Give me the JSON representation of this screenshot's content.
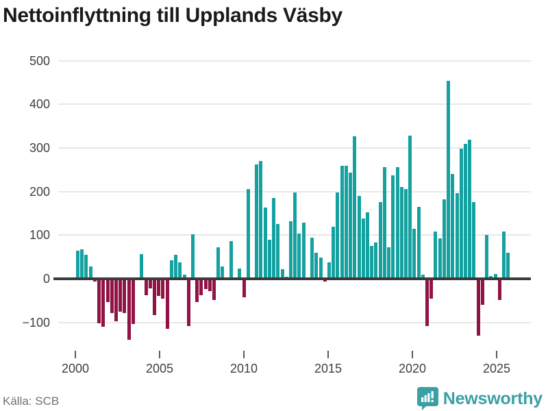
{
  "title": "Nettoinflyttning till Upplands Väsby",
  "footer": {
    "source_label": "Källa: SCB"
  },
  "brand": {
    "name": "Newsworthy",
    "color": "#3b9fa4",
    "icon": "bar-chart-bubble-icon"
  },
  "chart_data": {
    "type": "bar",
    "title": "Nettoinflyttning till Upplands Väsby",
    "xlabel": "",
    "ylabel": "",
    "frequency": "quarterly",
    "start_year": 2000,
    "start_quarter": 2,
    "x_ticks": [
      2000,
      2005,
      2010,
      2015,
      2020,
      2025
    ],
    "y_ticks": [
      500,
      400,
      300,
      200,
      100,
      0,
      -100
    ],
    "ylim": [
      -160,
      520
    ],
    "grid": true,
    "positive_color": "#14a1a0",
    "negative_color": "#911244",
    "values": [
      65,
      68,
      55,
      29,
      -6,
      -102,
      -110,
      -54,
      -78,
      -98,
      -76,
      -78,
      -140,
      -103,
      0,
      56,
      -38,
      -22,
      -83,
      -40,
      -45,
      -114,
      42,
      55,
      38,
      10,
      -108,
      102,
      -54,
      -38,
      -24,
      -29,
      -48,
      73,
      29,
      0,
      87,
      0,
      24,
      -43,
      206,
      0,
      262,
      271,
      163,
      89,
      186,
      125,
      22,
      4,
      132,
      198,
      103,
      129,
      0,
      94,
      59,
      49,
      -6,
      37,
      119,
      198,
      260,
      260,
      244,
      327,
      190,
      138,
      152,
      75,
      83,
      176,
      256,
      73,
      238,
      256,
      210,
      206,
      329,
      114,
      165,
      10,
      -108,
      -46,
      108,
      92,
      183,
      454,
      240,
      197,
      298,
      310,
      319,
      176,
      -130,
      -60,
      100,
      6,
      11,
      -49,
      108,
      60
    ]
  }
}
